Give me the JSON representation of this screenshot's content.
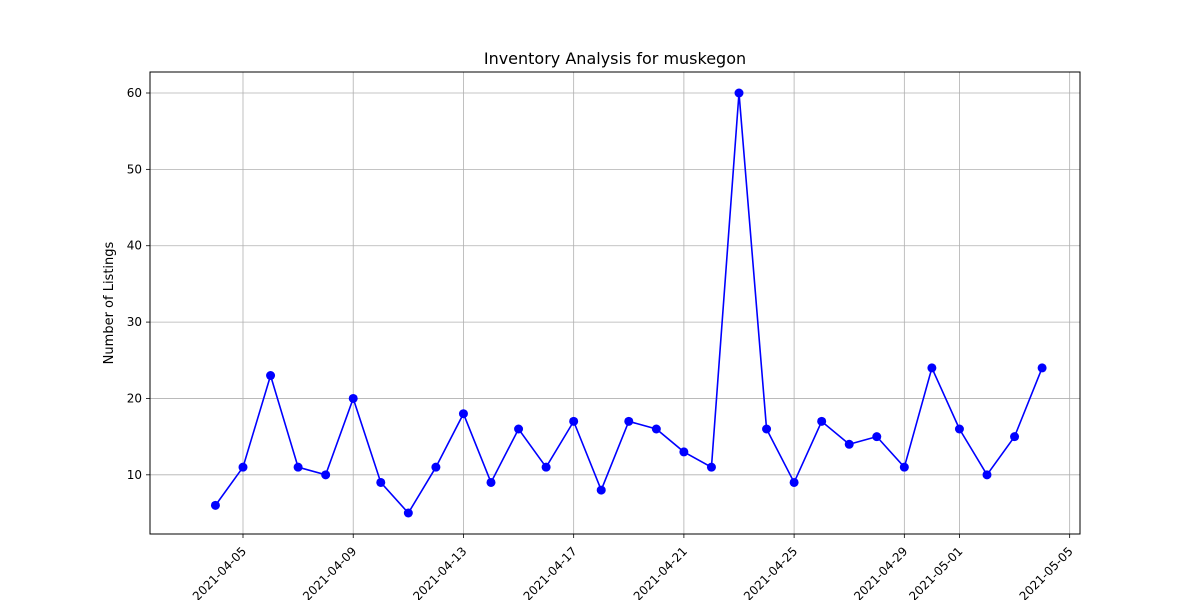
{
  "chart_data": {
    "type": "line",
    "title": "Inventory Analysis for muskegon",
    "xlabel": "",
    "ylabel": "Number of Listings",
    "x_tick_labels": [
      "2021-04-05",
      "2021-04-09",
      "2021-04-13",
      "2021-04-17",
      "2021-04-21",
      "2021-04-25",
      "2021-04-29",
      "2021-05-01",
      "2021-05-05"
    ],
    "y_tick_labels": [
      "10",
      "20",
      "30",
      "40",
      "50",
      "60"
    ],
    "xlim": [
      "2021-04-01 15:00",
      "2021-05-05 09:00"
    ],
    "ylim": [
      2.25,
      62.75
    ],
    "grid": true,
    "series": [
      {
        "color": "#0000ff",
        "marker": "circle",
        "x": [
          "2021-04-04",
          "2021-04-05",
          "2021-04-06",
          "2021-04-07",
          "2021-04-08",
          "2021-04-09",
          "2021-04-10",
          "2021-04-11",
          "2021-04-12",
          "2021-04-13",
          "2021-04-14",
          "2021-04-15",
          "2021-04-16",
          "2021-04-17",
          "2021-04-18",
          "2021-04-19",
          "2021-04-20",
          "2021-04-21",
          "2021-04-22",
          "2021-04-23",
          "2021-04-24",
          "2021-04-25",
          "2021-04-26",
          "2021-04-27",
          "2021-04-28",
          "2021-04-29",
          "2021-04-30",
          "2021-05-01",
          "2021-05-02",
          "2021-05-03",
          "2021-05-04"
        ],
        "values": [
          6,
          11,
          23,
          11,
          10,
          20,
          9,
          5,
          11,
          18,
          9,
          16,
          11,
          17,
          8,
          17,
          16,
          13,
          11,
          60,
          16,
          9,
          17,
          14,
          15,
          11,
          24,
          16,
          10,
          15,
          24
        ]
      }
    ]
  }
}
